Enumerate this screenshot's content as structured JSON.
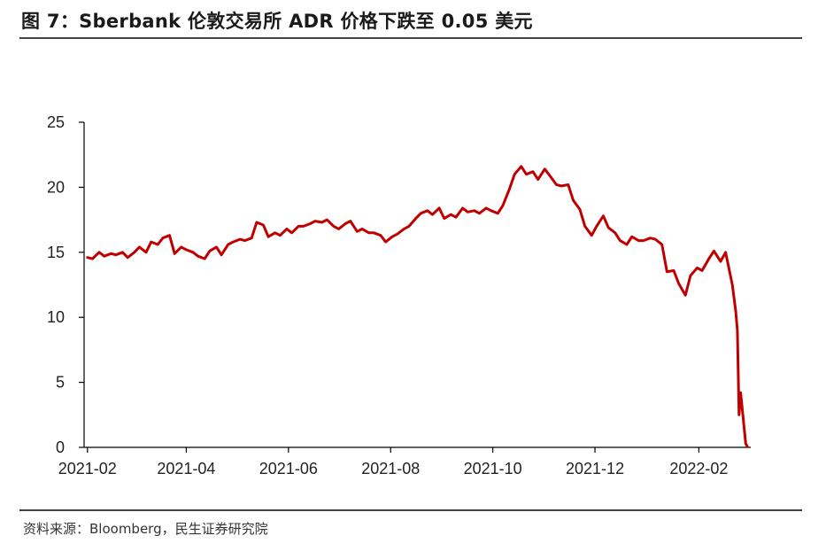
{
  "header": {
    "title": "图 7：Sberbank 伦敦交易所 ADR 价格下跌至 0.05 美元"
  },
  "footer": {
    "source": "资料来源：Bloomberg，民生证券研究院"
  },
  "colors": {
    "series": "#c00000",
    "axis": "#000000",
    "rule": "#444444"
  },
  "chart_data": {
    "type": "line",
    "title": "",
    "xlabel": "",
    "ylabel": "",
    "ylim": [
      0,
      25
    ],
    "yticks": [
      "0",
      "5",
      "10",
      "15",
      "20",
      "25"
    ],
    "xticks": [
      "2021-02",
      "2021-04",
      "2021-06",
      "2021-08",
      "2021-10",
      "2021-12",
      "2022-02"
    ],
    "grid": false,
    "legend": "none",
    "series": [
      {
        "name": "",
        "values": [
          [
            "2021-02-01",
            14.6
          ],
          [
            "2021-02-04",
            14.5
          ],
          [
            "2021-02-08",
            15.0
          ],
          [
            "2021-02-11",
            14.7
          ],
          [
            "2021-02-15",
            14.9
          ],
          [
            "2021-02-18",
            14.8
          ],
          [
            "2021-02-22",
            15.0
          ],
          [
            "2021-02-25",
            14.6
          ],
          [
            "2021-03-01",
            15.0
          ],
          [
            "2021-03-04",
            15.4
          ],
          [
            "2021-03-08",
            15.0
          ],
          [
            "2021-03-11",
            15.8
          ],
          [
            "2021-03-15",
            15.6
          ],
          [
            "2021-03-18",
            16.1
          ],
          [
            "2021-03-22",
            16.3
          ],
          [
            "2021-03-25",
            14.9
          ],
          [
            "2021-03-29",
            15.4
          ],
          [
            "2021-04-01",
            15.2
          ],
          [
            "2021-04-05",
            15.0
          ],
          [
            "2021-04-08",
            14.7
          ],
          [
            "2021-04-12",
            14.5
          ],
          [
            "2021-04-15",
            15.1
          ],
          [
            "2021-04-19",
            15.4
          ],
          [
            "2021-04-22",
            14.8
          ],
          [
            "2021-04-26",
            15.6
          ],
          [
            "2021-04-29",
            15.8
          ],
          [
            "2021-05-03",
            16.0
          ],
          [
            "2021-05-06",
            15.9
          ],
          [
            "2021-05-10",
            16.1
          ],
          [
            "2021-05-13",
            17.3
          ],
          [
            "2021-05-17",
            17.1
          ],
          [
            "2021-05-20",
            16.2
          ],
          [
            "2021-05-24",
            16.5
          ],
          [
            "2021-05-27",
            16.3
          ],
          [
            "2021-05-31",
            16.8
          ],
          [
            "2021-06-03",
            16.5
          ],
          [
            "2021-06-07",
            17.0
          ],
          [
            "2021-06-10",
            17.0
          ],
          [
            "2021-06-14",
            17.2
          ],
          [
            "2021-06-17",
            17.4
          ],
          [
            "2021-06-21",
            17.3
          ],
          [
            "2021-06-24",
            17.5
          ],
          [
            "2021-06-28",
            17.0
          ],
          [
            "2021-07-01",
            16.8
          ],
          [
            "2021-07-05",
            17.2
          ],
          [
            "2021-07-08",
            17.4
          ],
          [
            "2021-07-12",
            16.6
          ],
          [
            "2021-07-15",
            16.8
          ],
          [
            "2021-07-19",
            16.5
          ],
          [
            "2021-07-22",
            16.5
          ],
          [
            "2021-07-26",
            16.3
          ],
          [
            "2021-07-29",
            15.8
          ],
          [
            "2021-08-02",
            16.2
          ],
          [
            "2021-08-05",
            16.4
          ],
          [
            "2021-08-09",
            16.8
          ],
          [
            "2021-08-12",
            17.0
          ],
          [
            "2021-08-16",
            17.6
          ],
          [
            "2021-08-19",
            18.0
          ],
          [
            "2021-08-23",
            18.2
          ],
          [
            "2021-08-26",
            17.9
          ],
          [
            "2021-08-30",
            18.4
          ],
          [
            "2021-09-02",
            17.6
          ],
          [
            "2021-09-06",
            17.9
          ],
          [
            "2021-09-09",
            17.7
          ],
          [
            "2021-09-13",
            18.4
          ],
          [
            "2021-09-16",
            18.1
          ],
          [
            "2021-09-20",
            18.2
          ],
          [
            "2021-09-23",
            18.0
          ],
          [
            "2021-09-27",
            18.4
          ],
          [
            "2021-09-30",
            18.2
          ],
          [
            "2021-10-04",
            18.0
          ],
          [
            "2021-10-07",
            18.6
          ],
          [
            "2021-10-11",
            19.9
          ],
          [
            "2021-10-14",
            21.0
          ],
          [
            "2021-10-18",
            21.6
          ],
          [
            "2021-10-21",
            21.0
          ],
          [
            "2021-10-25",
            21.2
          ],
          [
            "2021-10-28",
            20.6
          ],
          [
            "2021-11-01",
            21.4
          ],
          [
            "2021-11-04",
            20.9
          ],
          [
            "2021-11-08",
            20.2
          ],
          [
            "2021-11-11",
            20.1
          ],
          [
            "2021-11-15",
            20.2
          ],
          [
            "2021-11-18",
            19.0
          ],
          [
            "2021-11-22",
            18.3
          ],
          [
            "2021-11-25",
            17.0
          ],
          [
            "2021-11-29",
            16.3
          ],
          [
            "2021-12-02",
            17.0
          ],
          [
            "2021-12-06",
            17.8
          ],
          [
            "2021-12-09",
            16.9
          ],
          [
            "2021-12-13",
            16.5
          ],
          [
            "2021-12-16",
            15.9
          ],
          [
            "2021-12-20",
            15.6
          ],
          [
            "2021-12-23",
            16.2
          ],
          [
            "2021-12-27",
            15.9
          ],
          [
            "2021-12-30",
            15.9
          ],
          [
            "2022-01-03",
            16.1
          ],
          [
            "2022-01-06",
            16.0
          ],
          [
            "2022-01-10",
            15.6
          ],
          [
            "2022-01-13",
            13.5
          ],
          [
            "2022-01-17",
            13.6
          ],
          [
            "2022-01-20",
            12.6
          ],
          [
            "2022-01-24",
            11.7
          ],
          [
            "2022-01-27",
            13.2
          ],
          [
            "2022-01-31",
            13.8
          ],
          [
            "2022-02-03",
            13.6
          ],
          [
            "2022-02-07",
            14.5
          ],
          [
            "2022-02-10",
            15.1
          ],
          [
            "2022-02-14",
            14.3
          ],
          [
            "2022-02-17",
            15.0
          ],
          [
            "2022-02-21",
            12.5
          ],
          [
            "2022-02-23",
            10.5
          ],
          [
            "2022-02-24",
            9.0
          ],
          [
            "2022-02-25",
            2.5
          ],
          [
            "2022-02-26",
            4.2
          ],
          [
            "2022-03-01",
            0.3
          ],
          [
            "2022-03-02",
            0.05
          ]
        ]
      }
    ]
  }
}
